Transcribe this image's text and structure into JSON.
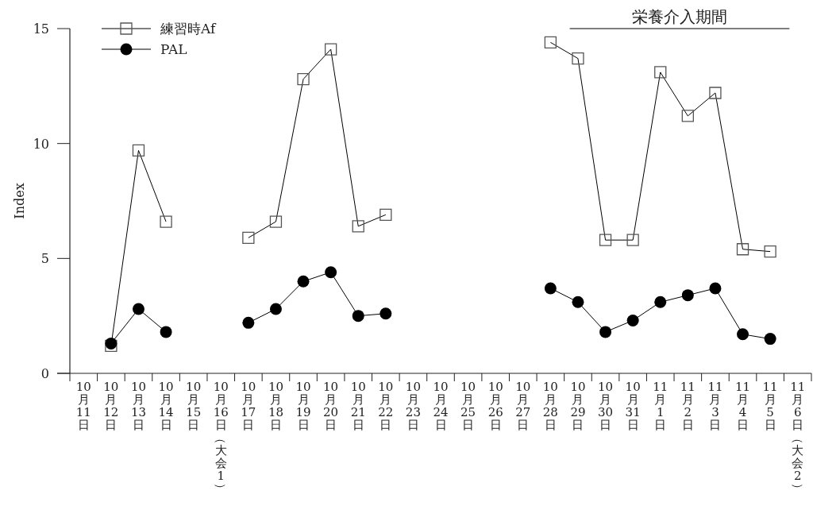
{
  "chart_data": {
    "type": "line",
    "ylabel": "Index",
    "categories": [
      "10月11日",
      "10月12日",
      "10月13日",
      "10月14日",
      "10月15日",
      "10月16日（大会1）",
      "10月17日",
      "10月18日",
      "10月19日",
      "10月20日",
      "10月21日",
      "10月22日",
      "10月23日",
      "10月24日",
      "10月25日",
      "10月26日",
      "10月27日",
      "10月28日",
      "10月29日",
      "10月30日",
      "10月31日",
      "11月1日",
      "11月2日",
      "11月3日",
      "11月4日",
      "11月5日",
      "11月6日（大会2）"
    ],
    "series": [
      {
        "name": "練習時Af",
        "color": "#000000",
        "marker": "square",
        "values": [
          null,
          1.2,
          9.7,
          6.6,
          null,
          null,
          5.9,
          6.6,
          12.8,
          14.1,
          6.4,
          6.9,
          null,
          null,
          null,
          null,
          null,
          14.4,
          13.7,
          5.8,
          5.8,
          13.1,
          11.2,
          12.2,
          5.4,
          5.3,
          null
        ]
      },
      {
        "name": "PAL",
        "color": "#000000",
        "marker": "circle",
        "values": [
          null,
          1.3,
          2.8,
          1.8,
          null,
          null,
          2.2,
          2.8,
          4.0,
          4.4,
          2.5,
          2.6,
          null,
          null,
          null,
          null,
          null,
          3.7,
          3.1,
          1.8,
          2.3,
          3.1,
          3.4,
          3.7,
          1.7,
          1.5,
          null
        ]
      }
    ],
    "ylim": [
      0,
      15
    ],
    "yticks": [
      0,
      5,
      10,
      15
    ],
    "grid": false,
    "legend": "top left",
    "annotations": [
      "栄養介入期間"
    ]
  }
}
